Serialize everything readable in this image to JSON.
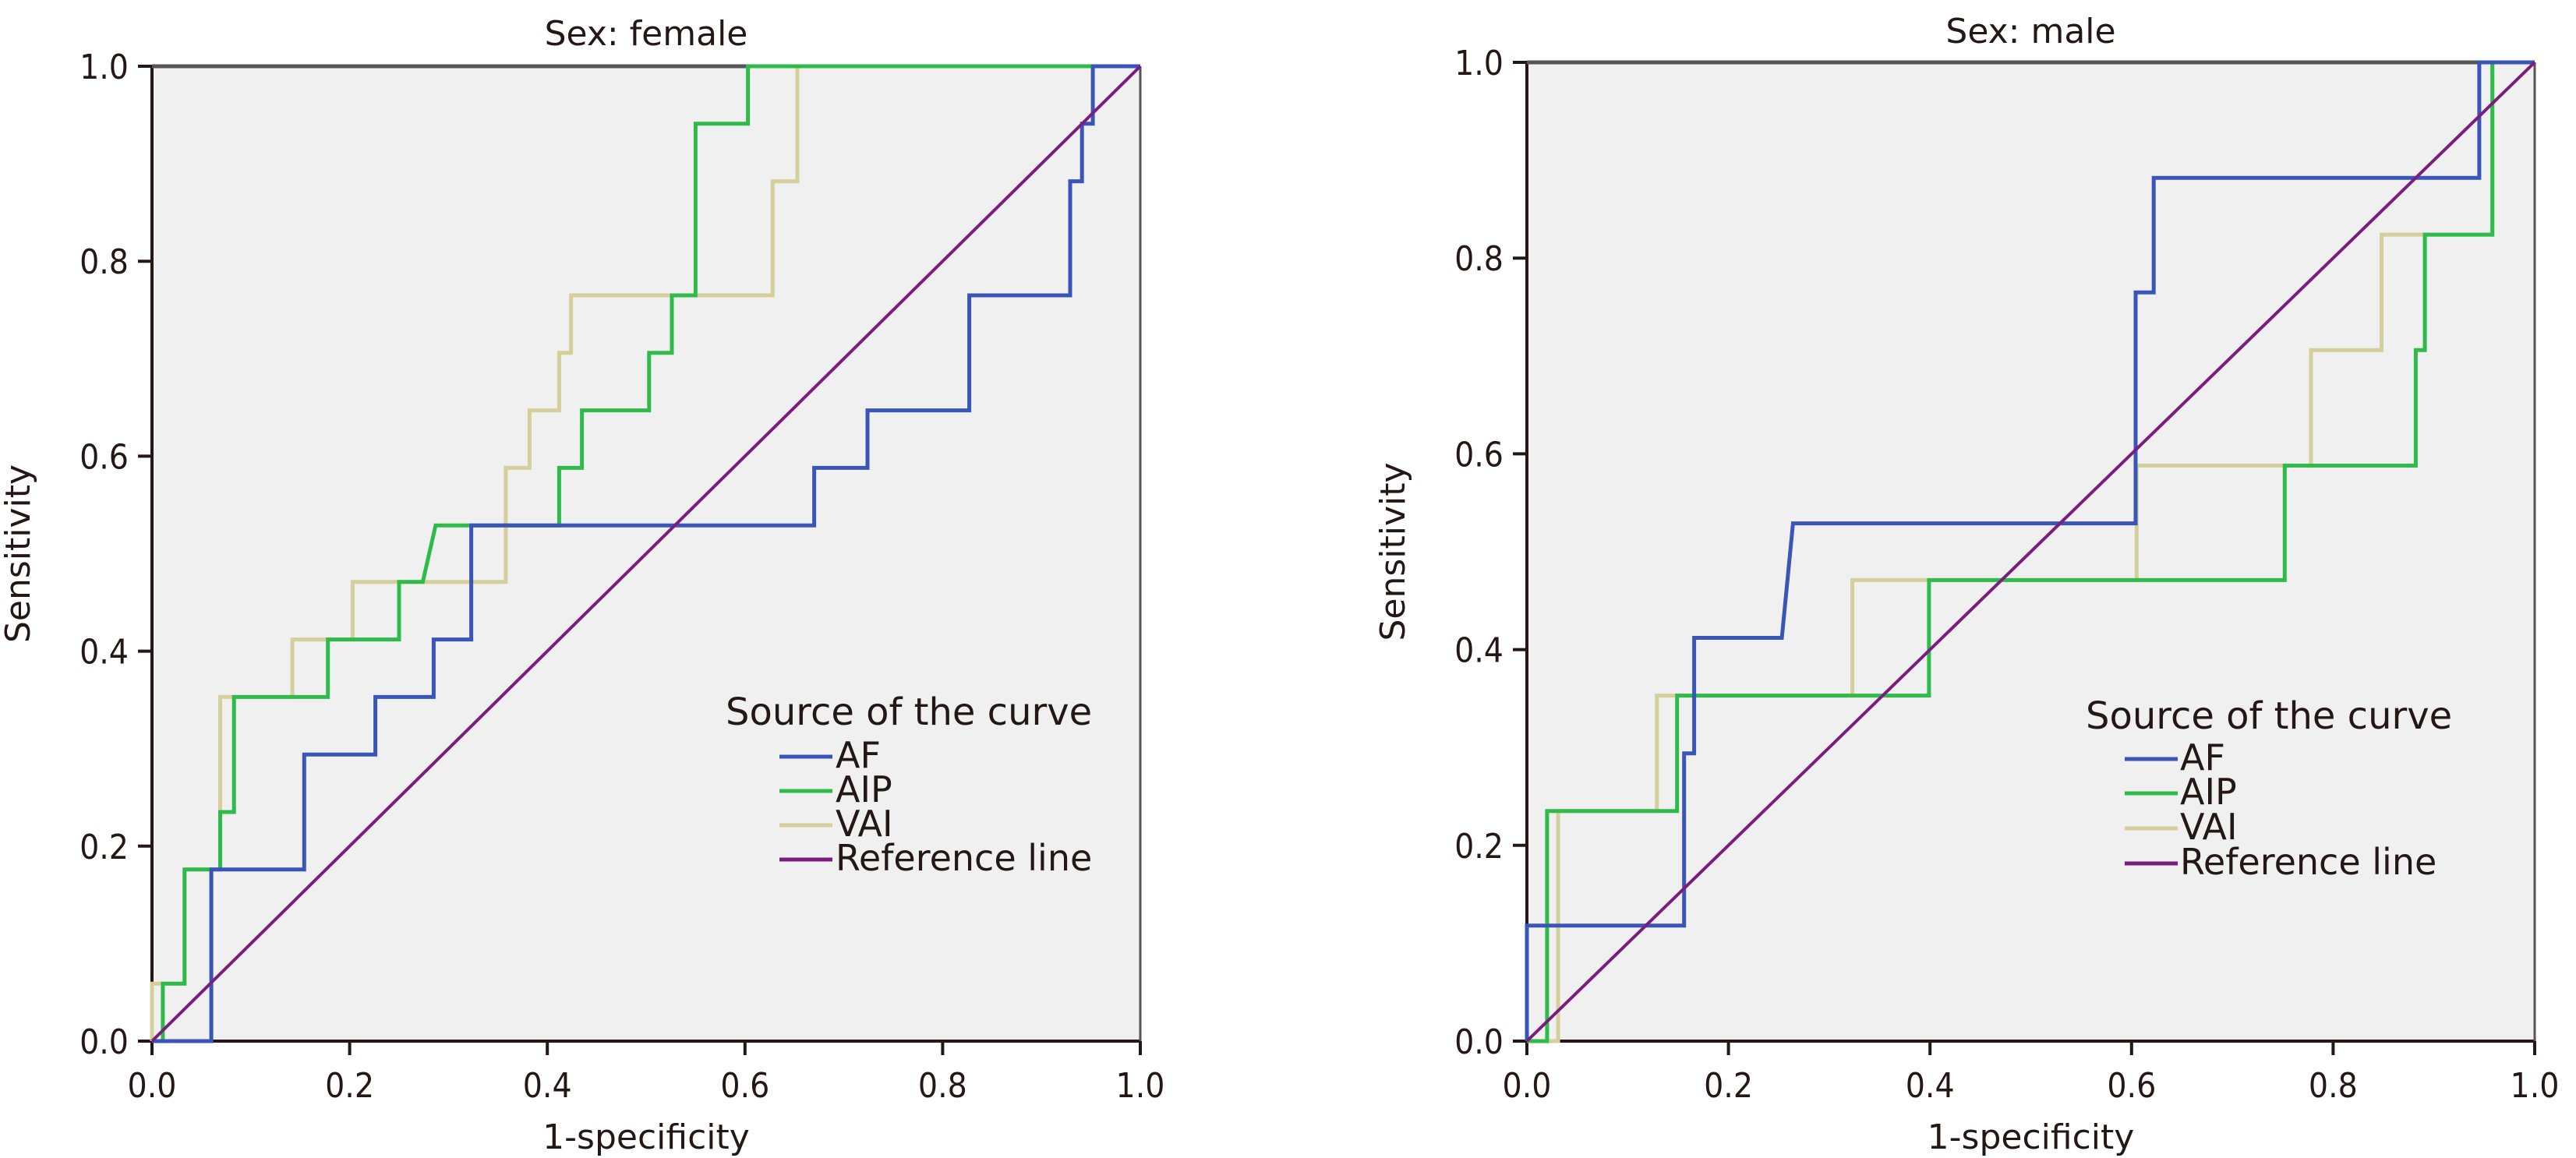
{
  "chart_data": [
    {
      "type": "line",
      "subtype": "roc-step",
      "title": "Sex: female",
      "xlabel": "1-specificity",
      "ylabel": "Sensitivity",
      "xlim": [
        0.0,
        1.0
      ],
      "ylim": [
        0.0,
        1.0
      ],
      "xticks": [
        "0.0",
        "0.2",
        "0.4",
        "0.6",
        "0.8",
        "1.0"
      ],
      "yticks": [
        "0.0",
        "0.2",
        "0.4",
        "0.6",
        "0.8",
        "1.0"
      ],
      "grid": false,
      "legend": {
        "title": "Source of the curve",
        "placement": "lower-right",
        "entries": [
          "AF",
          "AIP",
          "VAI",
          "Reference line"
        ]
      },
      "series": [
        {
          "name": "AF",
          "color": "#3a55b8",
          "x": [
            0.0,
            0.06,
            0.06,
            0.154,
            0.154,
            0.226,
            0.226,
            0.285,
            0.285,
            0.323,
            0.323,
            0.67,
            0.67,
            0.724,
            0.724,
            0.827,
            0.827,
            0.929,
            0.929,
            0.941,
            0.941,
            0.952,
            0.952,
            1.0
          ],
          "y": [
            0.0,
            0.0,
            0.176,
            0.176,
            0.294,
            0.294,
            0.353,
            0.353,
            0.412,
            0.412,
            0.529,
            0.529,
            0.588,
            0.588,
            0.647,
            0.647,
            0.765,
            0.765,
            0.882,
            0.882,
            0.941,
            0.941,
            1.0,
            1.0
          ]
        },
        {
          "name": "AIP",
          "color": "#2fbb4a",
          "x": [
            0.0,
            0.011,
            0.011,
            0.033,
            0.033,
            0.069,
            0.069,
            0.083,
            0.083,
            0.178,
            0.178,
            0.25,
            0.25,
            0.274,
            0.287,
            0.412,
            0.412,
            0.435,
            0.435,
            0.503,
            0.503,
            0.526,
            0.526,
            0.55,
            0.55,
            0.603,
            0.603,
            1.0
          ],
          "y": [
            0.0,
            0.0,
            0.059,
            0.059,
            0.176,
            0.176,
            0.235,
            0.235,
            0.353,
            0.353,
            0.412,
            0.412,
            0.471,
            0.471,
            0.529,
            0.529,
            0.588,
            0.588,
            0.647,
            0.647,
            0.706,
            0.706,
            0.765,
            0.765,
            0.941,
            0.941,
            1.0,
            1.0
          ]
        },
        {
          "name": "VAI",
          "color": "#d4cf9b",
          "x": [
            0.0,
            0.0,
            0.033,
            0.033,
            0.069,
            0.069,
            0.142,
            0.142,
            0.203,
            0.203,
            0.358,
            0.358,
            0.382,
            0.382,
            0.412,
            0.412,
            0.424,
            0.424,
            0.628,
            0.628,
            0.653,
            0.653,
            1.0
          ],
          "y": [
            0.0,
            0.059,
            0.059,
            0.176,
            0.176,
            0.353,
            0.353,
            0.412,
            0.412,
            0.471,
            0.471,
            0.588,
            0.588,
            0.647,
            0.647,
            0.706,
            0.706,
            0.765,
            0.765,
            0.882,
            0.882,
            1.0,
            1.0
          ]
        },
        {
          "name": "Reference line",
          "color": "#7b1d7e",
          "x": [
            0.0,
            1.0
          ],
          "y": [
            0.0,
            1.0
          ]
        }
      ]
    },
    {
      "type": "line",
      "subtype": "roc-step",
      "title": "Sex: male",
      "xlabel": "1-specificity",
      "ylabel": "Sensitivity",
      "xlim": [
        0.0,
        1.0
      ],
      "ylim": [
        0.0,
        1.0
      ],
      "xticks": [
        "0.0",
        "0.2",
        "0.4",
        "0.6",
        "0.8",
        "1.0"
      ],
      "yticks": [
        "0.0",
        "0.2",
        "0.4",
        "0.6",
        "0.8",
        "1.0"
      ],
      "grid": false,
      "legend": {
        "title": "Source of the curve",
        "placement": "lower-right",
        "entries": [
          "AF",
          "AIP",
          "VAI",
          "Reference line"
        ]
      },
      "series": [
        {
          "name": "AF",
          "color": "#3a55b8",
          "x": [
            0.0,
            0.0,
            0.156,
            0.156,
            0.166,
            0.166,
            0.253,
            0.264,
            0.604,
            0.604,
            0.622,
            0.622,
            0.945,
            0.945,
            1.0
          ],
          "y": [
            0.0,
            0.118,
            0.118,
            0.294,
            0.294,
            0.412,
            0.412,
            0.529,
            0.529,
            0.765,
            0.765,
            0.882,
            0.882,
            1.0,
            1.0
          ]
        },
        {
          "name": "AIP",
          "color": "#2fbb4a",
          "x": [
            0.0,
            0.02,
            0.02,
            0.149,
            0.149,
            0.399,
            0.399,
            0.752,
            0.752,
            0.882,
            0.882,
            0.891,
            0.891,
            0.958,
            0.958,
            1.0
          ],
          "y": [
            0.0,
            0.0,
            0.235,
            0.235,
            0.353,
            0.353,
            0.471,
            0.471,
            0.588,
            0.588,
            0.706,
            0.706,
            0.824,
            0.824,
            1.0,
            1.0
          ]
        },
        {
          "name": "VAI",
          "color": "#d4cf9b",
          "x": [
            0.0,
            0.031,
            0.031,
            0.129,
            0.129,
            0.323,
            0.323,
            0.605,
            0.605,
            0.778,
            0.778,
            0.848,
            0.848,
            0.958,
            0.958,
            1.0
          ],
          "y": [
            0.0,
            0.0,
            0.235,
            0.235,
            0.353,
            0.353,
            0.471,
            0.471,
            0.588,
            0.588,
            0.706,
            0.706,
            0.824,
            0.824,
            1.0,
            1.0
          ]
        },
        {
          "name": "Reference line",
          "color": "#7b1d7e",
          "x": [
            0.0,
            1.0
          ],
          "y": [
            0.0,
            1.0
          ]
        }
      ]
    }
  ],
  "style": {
    "plot_background": "#f0f0f0",
    "axis_color": "#231815"
  }
}
